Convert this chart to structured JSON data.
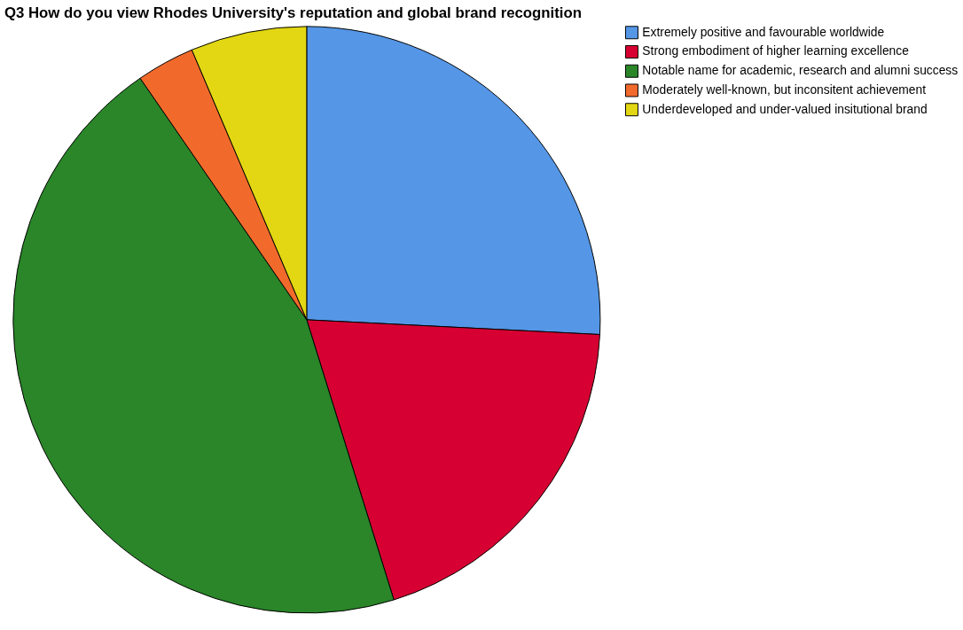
{
  "chart_data": {
    "type": "pie",
    "title": "Q3 How do you view Rhodes University's reputation and global brand recognition",
    "categories": [
      "Extremely positive and favourable worldwide",
      "Strong embodiment of higher learning excellence",
      "Notable name for academic, research and alumni success",
      "Moderately well-known, but inconsitent achievement",
      "Underdeveloped and under-valued insitutional brand"
    ],
    "values": [
      25.8,
      19.4,
      45.2,
      3.2,
      6.4
    ],
    "colors": [
      "#5596e6",
      "#d70032",
      "#2a8629",
      "#f26a2b",
      "#e2d712"
    ],
    "legend": "top right"
  }
}
